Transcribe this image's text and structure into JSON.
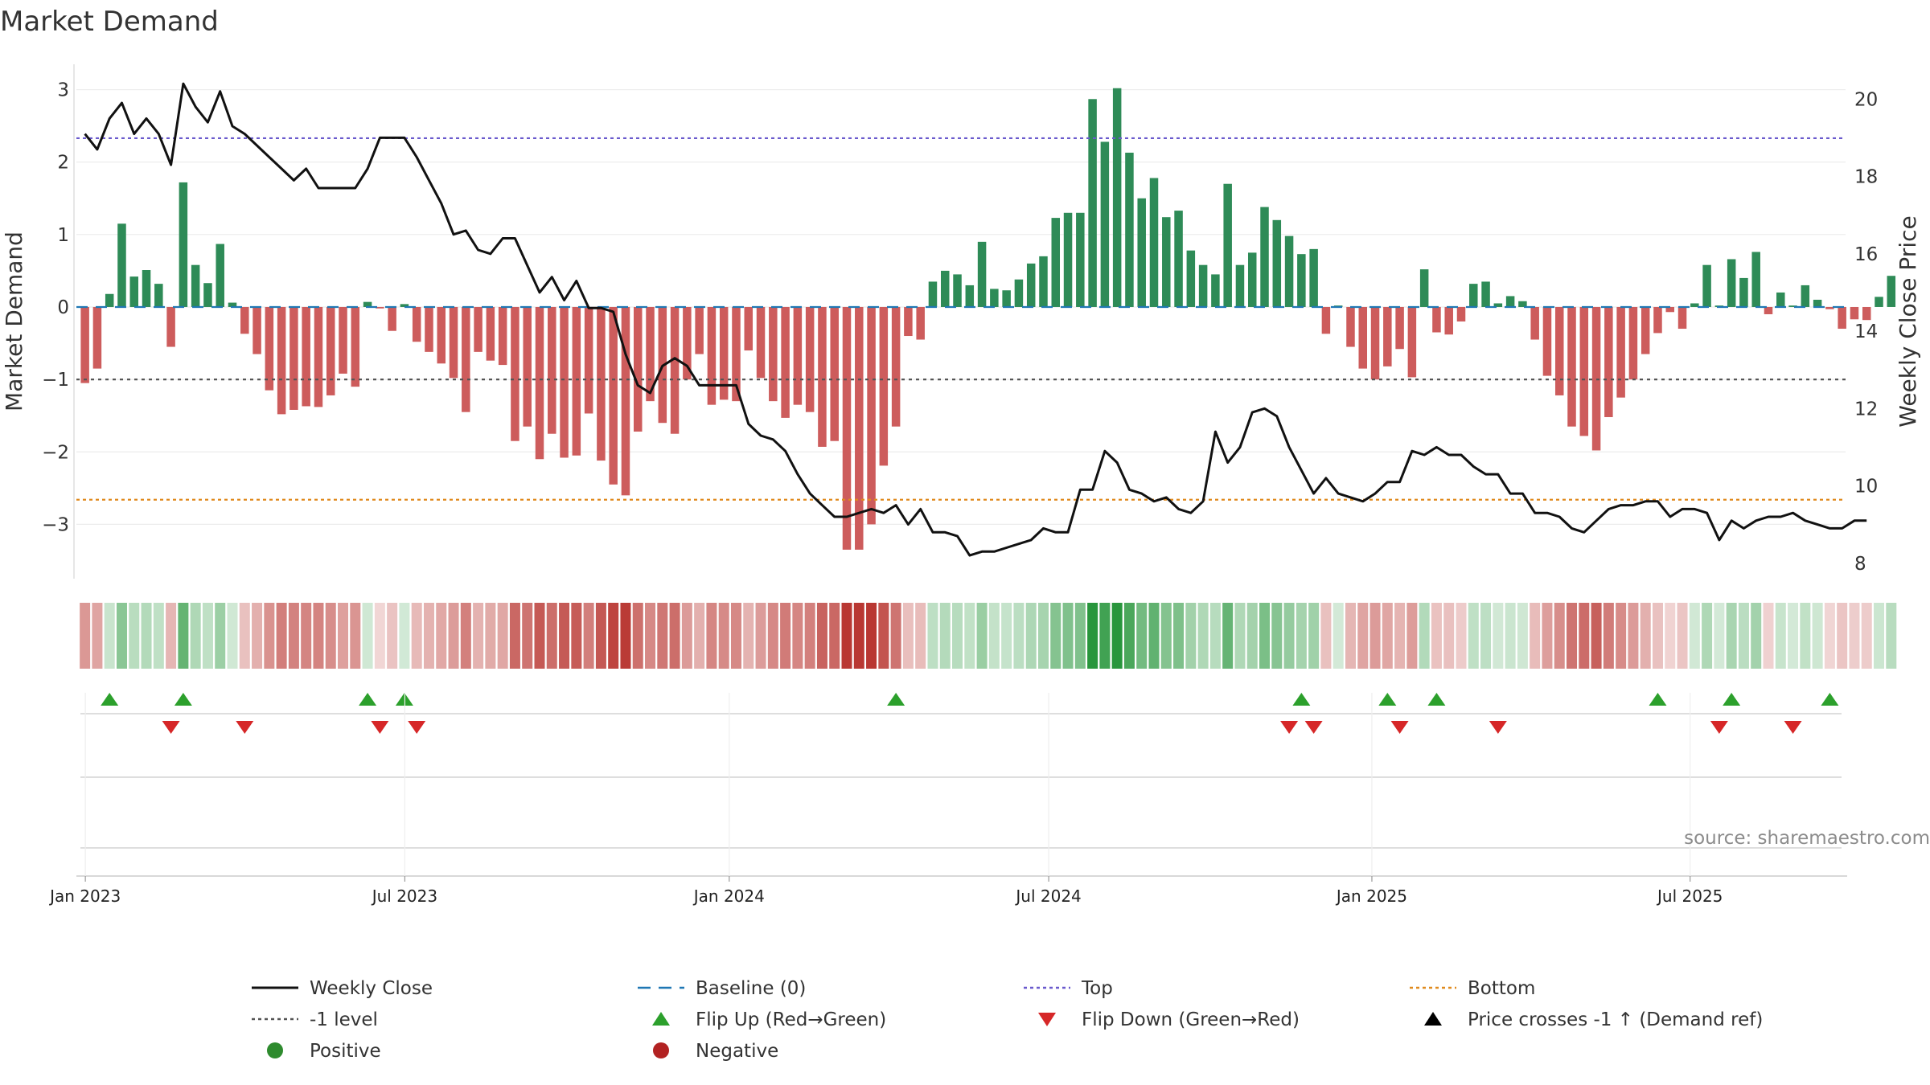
{
  "chart_data": {
    "type": "bar+line",
    "title": "Market Demand",
    "ylabel_left": "Market Demand",
    "ylabel_right": "Weekly Close Price",
    "ylim_left": [
      -3.75,
      3.35
    ],
    "ylim_right": [
      7.6,
      20.9
    ],
    "yticks_left": [
      3,
      2,
      1,
      0,
      -1,
      -2,
      -3
    ],
    "yticks_left_labels": [
      "3",
      "2",
      "1",
      "0",
      "−1",
      "−2",
      "−3"
    ],
    "yticks_right": [
      20,
      18,
      16,
      14,
      12,
      10,
      8
    ],
    "yticks_right_labels": [
      "20",
      "18",
      "16",
      "14",
      "12",
      "10",
      "8"
    ],
    "x_start_date": "2022-12-28",
    "x_interval": "weekly",
    "x_ticks": [
      {
        "label": "Jan 2023",
        "week": 1
      },
      {
        "label": "Jul 2023",
        "week": 27
      },
      {
        "label": "Jan 2024",
        "week": 53.4
      },
      {
        "label": "Jul 2024",
        "week": 79.4
      },
      {
        "label": "Jan 2025",
        "week": 105.7
      },
      {
        "label": "Jul 2025",
        "week": 131.6
      }
    ],
    "reference_lines": [
      {
        "name": "Baseline (0)",
        "value": 0,
        "color": "#1f77b4"
      },
      {
        "name": "-1 level",
        "value": -1,
        "color": "#555555"
      },
      {
        "name": "Top",
        "value": 2.33,
        "color": "#6a5acd"
      },
      {
        "name": "Bottom",
        "value": -2.66,
        "color": "#e08a1e"
      }
    ],
    "demand": [
      -1.05,
      -0.85,
      0.18,
      1.15,
      0.42,
      0.51,
      0.32,
      -0.55,
      1.72,
      0.58,
      0.33,
      0.87,
      0.06,
      -0.37,
      -0.65,
      -1.15,
      -1.48,
      -1.42,
      -1.37,
      -1.38,
      -1.22,
      -0.92,
      -1.1,
      0.07,
      -0.02,
      -0.33,
      0.04,
      -0.48,
      -0.62,
      -0.78,
      -0.98,
      -1.45,
      -0.62,
      -0.74,
      -0.8,
      -1.85,
      -1.65,
      -2.1,
      -1.75,
      -2.08,
      -2.05,
      -1.47,
      -2.12,
      -2.45,
      -2.6,
      -1.72,
      -1.3,
      -1.6,
      -1.75,
      -1.0,
      -0.65,
      -1.35,
      -1.28,
      -1.3,
      -0.6,
      -0.98,
      -1.3,
      -1.53,
      -1.35,
      -1.45,
      -1.93,
      -1.85,
      -3.35,
      -3.35,
      -3.0,
      -2.19,
      -1.65,
      -0.4,
      -0.45,
      0.35,
      0.5,
      0.45,
      0.3,
      0.9,
      0.25,
      0.23,
      0.38,
      0.6,
      0.7,
      1.23,
      1.3,
      1.3,
      2.87,
      2.28,
      3.02,
      2.13,
      1.5,
      1.78,
      1.24,
      1.33,
      0.78,
      0.58,
      0.45,
      1.7,
      0.58,
      0.75,
      1.38,
      1.2,
      0.98,
      0.73,
      0.8,
      -0.37,
      0.02,
      -0.55,
      -0.85,
      -1.0,
      -0.82,
      -0.58,
      -0.97,
      0.52,
      -0.35,
      -0.38,
      -0.2,
      0.32,
      0.35,
      0.05,
      0.15,
      0.08,
      -0.45,
      -0.95,
      -1.22,
      -1.65,
      -1.78,
      -1.98,
      -1.52,
      -1.25,
      -1.0,
      -0.65,
      -0.36,
      -0.07,
      -0.3,
      0.05,
      0.58,
      0.02,
      0.66,
      0.4,
      0.76,
      -0.1,
      0.2,
      0.02,
      0.3,
      0.1,
      -0.03,
      -0.3,
      -0.17,
      -0.18,
      0.14,
      0.43
    ],
    "weekly_close": [
      19.1,
      18.7,
      19.5,
      19.9,
      19.1,
      19.5,
      19.1,
      18.3,
      20.4,
      19.8,
      19.4,
      20.2,
      19.3,
      19.1,
      18.8,
      18.5,
      18.2,
      17.9,
      18.2,
      17.7,
      17.7,
      17.7,
      17.7,
      18.2,
      19.0,
      19.0,
      19.0,
      18.5,
      17.9,
      17.3,
      16.5,
      16.6,
      16.1,
      16.0,
      16.4,
      16.4,
      15.7,
      15.0,
      15.4,
      14.8,
      15.3,
      14.6,
      14.6,
      14.5,
      13.4,
      12.6,
      12.4,
      13.1,
      13.3,
      13.1,
      12.6,
      12.6,
      12.6,
      12.6,
      11.6,
      11.3,
      11.2,
      10.9,
      10.3,
      9.8,
      9.5,
      9.2,
      9.2,
      9.3,
      9.4,
      9.3,
      9.5,
      9.0,
      9.4,
      8.8,
      8.8,
      8.7,
      8.2,
      8.3,
      8.3,
      8.4,
      8.5,
      8.6,
      8.9,
      8.8,
      8.8,
      9.9,
      9.9,
      10.9,
      10.6,
      9.9,
      9.8,
      9.6,
      9.7,
      9.4,
      9.3,
      9.6,
      11.4,
      10.6,
      11.0,
      11.9,
      12.0,
      11.8,
      11.0,
      10.4,
      9.8,
      10.2,
      9.8,
      9.7,
      9.6,
      9.8,
      10.1,
      10.1,
      10.9,
      10.8,
      11.0,
      10.8,
      10.8,
      10.5,
      10.3,
      10.3,
      9.8,
      9.8,
      9.3,
      9.3,
      9.2,
      8.9,
      8.8,
      9.1,
      9.4,
      9.5,
      9.5,
      9.6,
      9.6,
      9.2,
      9.4,
      9.4,
      9.3,
      8.6,
      9.1,
      8.9,
      9.1,
      9.2,
      9.2,
      9.3,
      9.1,
      9.0,
      8.9,
      8.9,
      9.1,
      9.1
    ],
    "flip_up_weeks": [
      2,
      8,
      23,
      26,
      66,
      99,
      106,
      110,
      128,
      134,
      142
    ],
    "flip_down_weeks": [
      7,
      13,
      24,
      27,
      98,
      100,
      107,
      115,
      133,
      139
    ],
    "source": "source: sharemaestro.com",
    "legend": [
      {
        "label": "Weekly Close",
        "kind": "line-solid",
        "color": "#111111"
      },
      {
        "label": "Baseline (0)",
        "kind": "line-dash",
        "color": "#1f77b4"
      },
      {
        "label": "Top",
        "kind": "line-dot",
        "color": "#6a5acd"
      },
      {
        "label": "Bottom",
        "kind": "line-dot",
        "color": "#e08a1e"
      },
      {
        "label": "-1 level",
        "kind": "line-dot",
        "color": "#555555"
      },
      {
        "label": "Flip Up (Red→Green)",
        "kind": "tri-up",
        "color": "#2ca02c"
      },
      {
        "label": "Flip Down (Green→Red)",
        "kind": "tri-down",
        "color": "#d62728"
      },
      {
        "label": "Price crosses -1 ↑ (Demand ref)",
        "kind": "tri-up",
        "color": "#000000"
      },
      {
        "label": "Positive",
        "kind": "dot",
        "color": "#2e8b2e"
      },
      {
        "label": "Negative",
        "kind": "dot",
        "color": "#b22222"
      }
    ],
    "colors": {
      "positive_bar": "#2e8b57",
      "negative_bar": "#cd5c5c",
      "price_line": "#111111",
      "flip_up": "#2ca02c",
      "flip_down": "#d62728"
    }
  }
}
